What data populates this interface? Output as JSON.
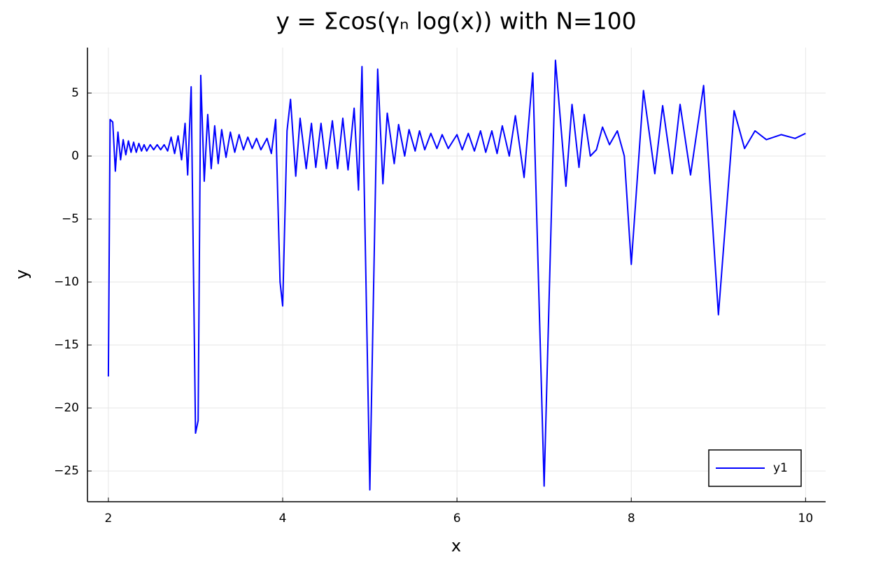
{
  "chart_data": {
    "type": "line",
    "title": "y = Σcos(γₙ log(x)) with N=100",
    "x_label": "x",
    "y_label": "y",
    "x": [
      2.0,
      2.02,
      2.05,
      2.08,
      2.11,
      2.14,
      2.17,
      2.2,
      2.23,
      2.26,
      2.29,
      2.32,
      2.35,
      2.38,
      2.41,
      2.44,
      2.48,
      2.52,
      2.56,
      2.6,
      2.64,
      2.68,
      2.72,
      2.76,
      2.8,
      2.84,
      2.88,
      2.91,
      2.95,
      3.0,
      3.03,
      3.06,
      3.1,
      3.14,
      3.18,
      3.22,
      3.26,
      3.3,
      3.35,
      3.4,
      3.45,
      3.5,
      3.55,
      3.6,
      3.65,
      3.7,
      3.75,
      3.82,
      3.87,
      3.92,
      3.97,
      4.0,
      4.05,
      4.09,
      4.15,
      4.2,
      4.27,
      4.33,
      4.38,
      4.44,
      4.5,
      4.57,
      4.63,
      4.69,
      4.75,
      4.82,
      4.87,
      4.91,
      5.0,
      5.09,
      5.15,
      5.2,
      5.28,
      5.33,
      5.4,
      5.45,
      5.52,
      5.57,
      5.63,
      5.7,
      5.77,
      5.83,
      5.9,
      6.0,
      6.06,
      6.13,
      6.2,
      6.27,
      6.33,
      6.4,
      6.46,
      6.52,
      6.6,
      6.67,
      6.77,
      6.87,
      7.0,
      7.13,
      7.25,
      7.32,
      7.4,
      7.46,
      7.53,
      7.6,
      7.67,
      7.75,
      7.84,
      7.92,
      8.0,
      8.14,
      8.27,
      8.36,
      8.47,
      8.56,
      8.68,
      8.83,
      9.0,
      9.18,
      9.3,
      9.42,
      9.55,
      9.72,
      9.88,
      10.0
    ],
    "series": [
      {
        "name": "y1",
        "color": "#0000ff",
        "values": [
          -17.5,
          2.9,
          2.7,
          -1.2,
          1.9,
          -0.3,
          1.3,
          0.1,
          1.2,
          0.3,
          1.1,
          0.3,
          1.0,
          0.4,
          0.9,
          0.4,
          0.9,
          0.5,
          0.9,
          0.5,
          0.9,
          0.4,
          1.5,
          0.2,
          1.6,
          -0.3,
          2.6,
          -1.5,
          5.5,
          -22.0,
          -21.0,
          6.4,
          -2.0,
          3.3,
          -1.0,
          2.4,
          -0.6,
          2.1,
          -0.1,
          1.9,
          0.3,
          1.7,
          0.5,
          1.5,
          0.6,
          1.4,
          0.5,
          1.4,
          0.2,
          2.9,
          -10.0,
          -11.9,
          2.0,
          4.5,
          -1.6,
          3.0,
          -1.0,
          2.6,
          -0.9,
          2.6,
          -1.0,
          2.8,
          -1.0,
          3.0,
          -1.1,
          3.8,
          -2.7,
          7.1,
          -26.5,
          6.9,
          -2.2,
          3.4,
          -0.6,
          2.5,
          0.0,
          2.1,
          0.4,
          2.0,
          0.5,
          1.8,
          0.6,
          1.7,
          0.6,
          1.7,
          0.5,
          1.8,
          0.4,
          2.0,
          0.3,
          2.0,
          0.2,
          2.4,
          0.0,
          3.2,
          -1.7,
          6.6,
          -26.2,
          7.6,
          -2.4,
          4.1,
          -0.9,
          3.3,
          0.0,
          0.5,
          2.3,
          0.9,
          2.0,
          0.0,
          -8.6,
          5.2,
          -1.4,
          4.0,
          -1.4,
          4.1,
          -1.5,
          5.6,
          -12.6,
          3.6,
          0.6,
          2.0,
          1.3,
          1.7,
          1.4,
          1.8
        ]
      }
    ],
    "xlim": [
      1.76,
      10.23
    ],
    "ylim": [
      -27.44,
      8.61
    ],
    "xticks": [
      2,
      4,
      6,
      8,
      10
    ],
    "yticks": [
      {
        "value": -25,
        "label": "−25"
      },
      {
        "value": -20,
        "label": "−20"
      },
      {
        "value": -15,
        "label": "−15"
      },
      {
        "value": -10,
        "label": "−10"
      },
      {
        "value": -5,
        "label": "−5"
      },
      0,
      5
    ],
    "grid": true,
    "legend": "bottom-right"
  }
}
